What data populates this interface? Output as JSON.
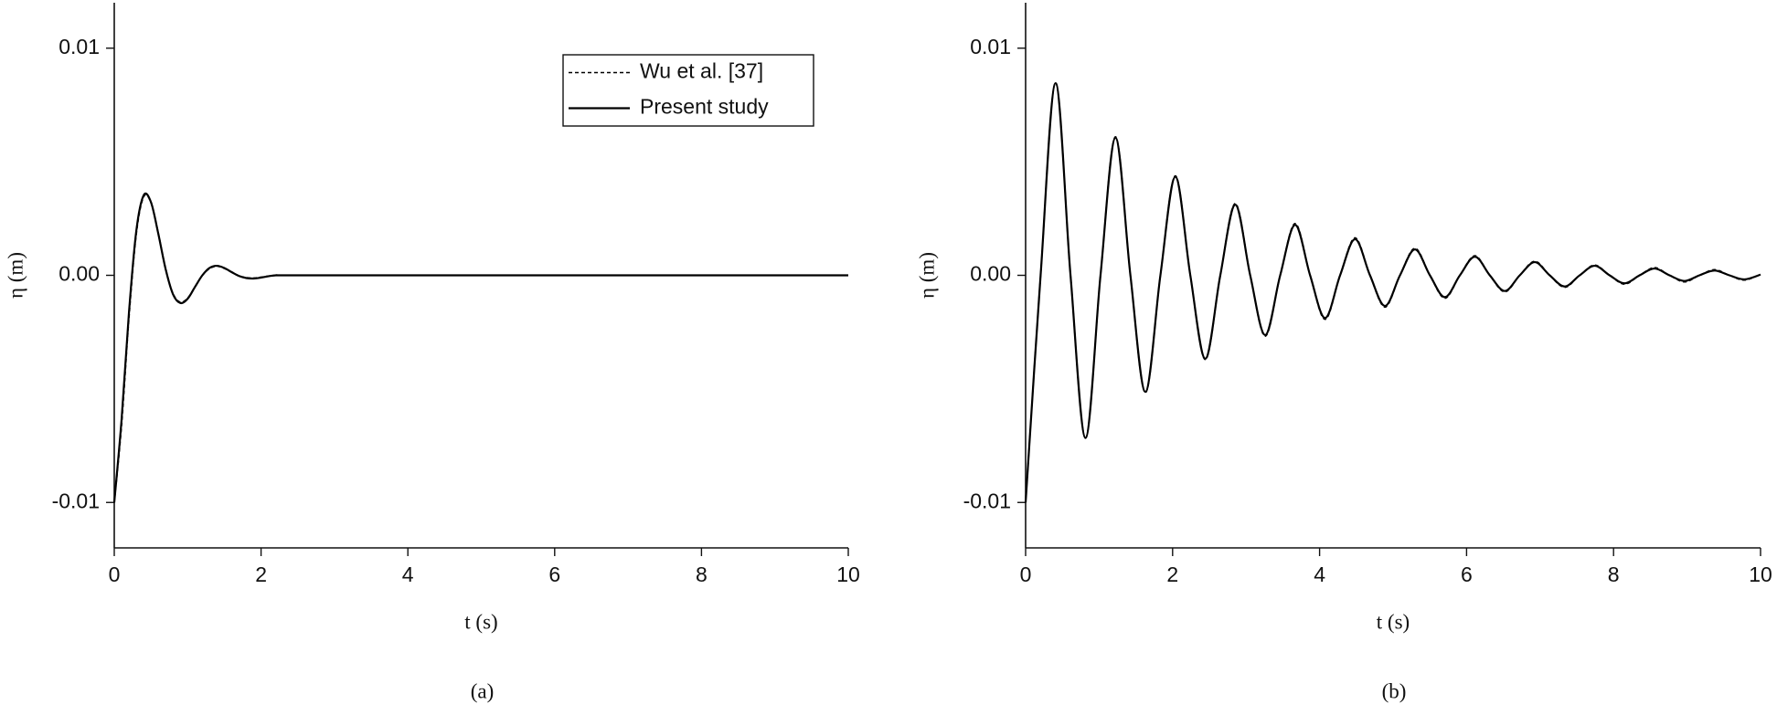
{
  "chart_data": [
    {
      "type": "line",
      "caption": "(a)",
      "xlabel": "t (s)",
      "ylabel": "η (m)",
      "x": [
        0,
        0.1,
        0.2,
        0.3,
        0.4,
        0.5,
        0.6,
        0.7,
        0.8,
        0.9,
        1.0,
        1.1,
        1.2,
        1.3,
        1.4,
        1.5,
        1.6,
        1.7,
        1.8,
        1.9,
        2.0,
        2.2,
        2.5,
        5,
        10
      ],
      "series": [
        {
          "name": "Wu et al. [37]",
          "color": "#000000",
          "line_style": "dashed",
          "values": [
            -0.01,
            -0.0066,
            -0.0019,
            0.0018,
            0.00345,
            0.0032,
            0.00185,
            0.0003,
            -0.0008,
            -0.00118,
            -0.001,
            -0.0005,
            0,
            0.0003,
            0.0004,
            0.0003,
            0.00013,
            -2e-05,
            -0.0001,
            -0.00012,
            -8e-05,
            0,
            0,
            0,
            0
          ]
        },
        {
          "name": "Present study",
          "color": "#000000",
          "line_style": "solid",
          "values": [
            -0.01,
            -0.00634,
            -0.00165,
            0.00195,
            0.00352,
            0.00322,
            0.00183,
            0.00027,
            -0.00083,
            -0.00122,
            -0.00103,
            -0.00051,
            0,
            0.00033,
            0.00042,
            0.00032,
            0.00014,
            -3e-05,
            -0.00012,
            -0.00014,
            -0.0001,
            0,
            0,
            0,
            0
          ]
        }
      ],
      "xlim": [
        0,
        10
      ],
      "xticks": [
        0,
        2,
        4,
        6,
        8,
        10
      ],
      "ylim": [
        -0.012,
        0.012
      ],
      "yticks": [
        -0.01,
        {
          "value": 0,
          "label": "0.00"
        },
        0.01
      ],
      "legend": "top-right"
    },
    {
      "type": "line",
      "caption": "(b)",
      "xlabel": "t (s)",
      "ylabel": "η (m)",
      "x": [
        0,
        0.204,
        0.408,
        0.611,
        0.815,
        1.019,
        1.223,
        1.426,
        1.63,
        1.834,
        2.038,
        2.241,
        2.445,
        2.649,
        2.853,
        3.056,
        3.26,
        3.464,
        3.668,
        3.871,
        4.075,
        4.279,
        4.483,
        4.686,
        4.89,
        5.094,
        5.298,
        5.501,
        5.705,
        5.909,
        6.113,
        6.316,
        6.52,
        6.724,
        6.928,
        7.131,
        7.335,
        7.539,
        7.743,
        7.946,
        8.15,
        8.354,
        8.558,
        8.761,
        8.965,
        9.169,
        9.373,
        9.576,
        9.78,
        10
      ],
      "series": [
        {
          "color": "#000000",
          "line_style": "dashed",
          "values": [
            -0.01,
            0,
            0.00848,
            0,
            -0.00718,
            0,
            0.0061,
            0,
            -0.00517,
            0,
            0.00438,
            0,
            -0.00371,
            0,
            0.00316,
            0,
            -0.00268,
            0,
            0.00228,
            0,
            -0.00194,
            0,
            0.00165,
            0,
            -0.0014,
            0,
            0.00119,
            0,
            -0.00101,
            0,
            0.00086,
            0,
            -0.00073,
            0,
            0.00062,
            0,
            -0.00053,
            0,
            0.00045,
            0,
            -0.00039,
            0,
            0.00034,
            0,
            -0.00029,
            0,
            0.00025,
            0,
            -0.00021,
            4e-05
          ]
        },
        {
          "color": "#000000",
          "line_style": "solid",
          "values": [
            -0.01,
            0,
            0.00846,
            0,
            -0.00716,
            0,
            0.00606,
            0,
            -0.00513,
            0,
            0.00434,
            0,
            -0.00367,
            0,
            0.00311,
            0,
            -0.00263,
            0,
            0.00222,
            0,
            -0.00188,
            0,
            0.00159,
            0,
            -0.00135,
            0,
            0.00114,
            0,
            -0.00096,
            0,
            0.00082,
            0,
            -0.00069,
            0,
            0.00058,
            0,
            -0.00049,
            0,
            0.00042,
            0,
            -0.00035,
            0,
            0.0003,
            0,
            -0.00025,
            0,
            0.00021,
            0,
            -0.00018,
            3e-05
          ]
        }
      ],
      "xlim": [
        0,
        10
      ],
      "xticks": [
        0,
        2,
        4,
        6,
        8,
        10
      ],
      "ylim": [
        -0.012,
        0.012
      ],
      "yticks": [
        -0.01,
        {
          "value": 0,
          "label": "0.00"
        },
        0.01
      ]
    }
  ]
}
